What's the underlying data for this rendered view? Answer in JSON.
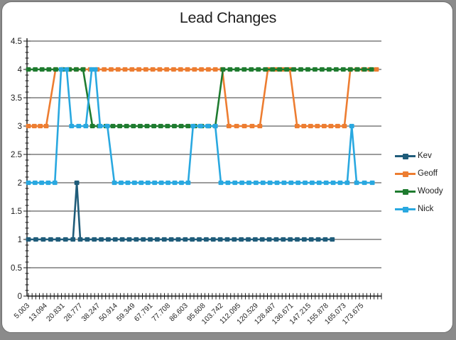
{
  "frame": {
    "backdrop_color": "#8b8b8b",
    "card_color": "#ffffff"
  },
  "chart_data": {
    "type": "line",
    "title": "Lead Changes",
    "xlabel": "",
    "ylabel": "",
    "y_range": [
      0,
      4.5
    ],
    "y_tick_step": 0.5,
    "y_tick_labels": [
      "0",
      "0.5",
      "1",
      "1.5",
      "2",
      "2.5",
      "3",
      "3.5",
      "4",
      "4.5"
    ],
    "x_tick_labels": [
      "5.003",
      "13.094",
      "20.831",
      "28.777",
      "38.247",
      "50.914",
      "59.349",
      "67.791",
      "77.708",
      "86.603",
      "95.608",
      "103.742",
      "112.095",
      "120.529",
      "128.487",
      "136.671",
      "147.215",
      "155.878",
      "165.073",
      "173.675"
    ],
    "grid": "horizontal major gridlines every 0.5",
    "legend_position": "right",
    "axis_color": "#1a1a1a",
    "grid_color": "#3a3a3a",
    "series_note": "points are [x_fraction_of_plot_width, rank]; rank 1-4 step lines",
    "series": [
      {
        "name": "Kev",
        "color": "#1F5C7A",
        "points": [
          [
            0,
            1
          ],
          [
            0.128,
            1
          ],
          [
            0.139,
            2
          ],
          [
            0.149,
            1
          ],
          [
            0.873,
            1
          ]
        ]
      },
      {
        "name": "Geoff",
        "color": "#ED7D31",
        "points": [
          [
            0,
            3
          ],
          [
            0.051,
            3
          ],
          [
            0.078,
            4
          ],
          [
            0.557,
            4
          ],
          [
            0.576,
            3
          ],
          [
            0.665,
            3
          ],
          [
            0.688,
            4
          ],
          [
            0.751,
            4
          ],
          [
            0.772,
            3
          ],
          [
            0.908,
            3
          ],
          [
            0.925,
            4
          ],
          [
            1.0,
            4
          ]
        ]
      },
      {
        "name": "Woody",
        "color": "#1E7B2F",
        "points": [
          [
            0,
            4
          ],
          [
            0.157,
            4
          ],
          [
            0.184,
            3
          ],
          [
            0.537,
            3
          ],
          [
            0.559,
            4
          ],
          [
            0.986,
            4
          ]
        ]
      },
      {
        "name": "Nick",
        "color": "#29A8E0",
        "points": [
          [
            0,
            2
          ],
          [
            0.076,
            2
          ],
          [
            0.094,
            4
          ],
          [
            0.11,
            4
          ],
          [
            0.124,
            3
          ],
          [
            0.165,
            3
          ],
          [
            0.182,
            4
          ],
          [
            0.192,
            4
          ],
          [
            0.206,
            3
          ],
          [
            0.227,
            3
          ],
          [
            0.247,
            2
          ],
          [
            0.459,
            2
          ],
          [
            0.473,
            3
          ],
          [
            0.537,
            3
          ],
          [
            0.553,
            2
          ],
          [
            0.916,
            2
          ],
          [
            0.929,
            3
          ],
          [
            0.943,
            2
          ],
          [
            0.988,
            2
          ]
        ]
      }
    ]
  }
}
